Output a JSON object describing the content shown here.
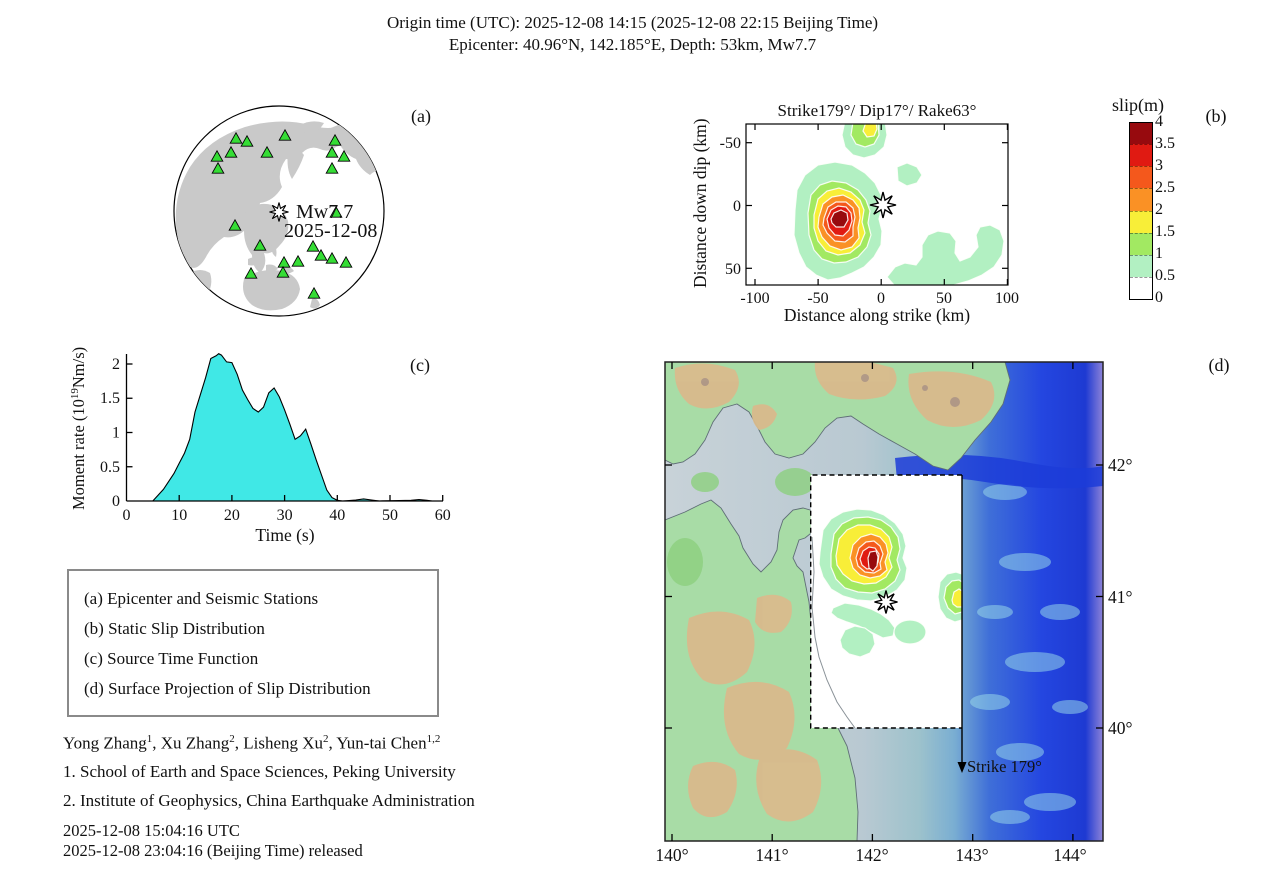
{
  "title": {
    "line1": "Origin time (UTC): 2025-12-08 14:15  (2025-12-08 22:15 Beijing Time)",
    "line2": "Epicenter: 40.96°N, 142.185°E,  Depth: 53km,  Mw7.7"
  },
  "panel_a": {
    "label": "(a)",
    "event_magnitude": "Mw7.7",
    "event_date": "2025-12-08",
    "stations_xy": [
      [
        76,
        44
      ],
      [
        87,
        47
      ],
      [
        125,
        41
      ],
      [
        71,
        58
      ],
      [
        57,
        62
      ],
      [
        107,
        58
      ],
      [
        175,
        46
      ],
      [
        172,
        58
      ],
      [
        184,
        62
      ],
      [
        58,
        74
      ],
      [
        172,
        74
      ],
      [
        176,
        118
      ],
      [
        75,
        131
      ],
      [
        100,
        151
      ],
      [
        153,
        152
      ],
      [
        161,
        161
      ],
      [
        172,
        164
      ],
      [
        186,
        168
      ],
      [
        124,
        168
      ],
      [
        138,
        167
      ],
      [
        91,
        179
      ],
      [
        123,
        178
      ],
      [
        154,
        199
      ]
    ]
  },
  "panel_b": {
    "label": "(b)",
    "title": "Strike179°/ Dip17°/ Rake63°",
    "xlabel": "Distance along strike (km)",
    "ylabel": "Distance down dip (km)",
    "x_ticks": [
      "-100",
      "-50",
      "0",
      "50",
      "100"
    ],
    "y_ticks": [
      "-50",
      "0",
      "50"
    ]
  },
  "colorbar": {
    "title": "slip(m)",
    "ticks": [
      "4",
      "3.5",
      "3",
      "2.5",
      "2",
      "1.5",
      "1",
      "0.5",
      "0"
    ],
    "colors_top_to_bottom": [
      "#970a0e",
      "#e01a12",
      "#f4581c",
      "#fa9125",
      "#f8ee38",
      "#a2e962",
      "#b2f0c2",
      "#ffffff"
    ]
  },
  "panel_c": {
    "label": "(c)",
    "ylabel_prefix": "Moment rate (10",
    "ylabel_sup": "19",
    "ylabel_suffix": "Nm/s)",
    "xlabel": "Time (s)",
    "x_ticks": [
      "0",
      "10",
      "20",
      "30",
      "40",
      "50",
      "60"
    ],
    "y_ticks": [
      "0",
      "0.5",
      "1",
      "1.5",
      "2"
    ],
    "fill_color": "#40e8e6"
  },
  "panel_d": {
    "label": "(d)",
    "lat_labels": [
      "42°",
      "41°",
      "40°"
    ],
    "lon_labels": [
      "140°",
      "141°",
      "142°",
      "143°",
      "144°"
    ],
    "strike_label": "Strike 179°",
    "palette": {
      "land_green": "#a8dca6",
      "mountain_tan": "#d9ba8c",
      "sea_near": "#c6d0d6",
      "sea_deep": "#2446e0",
      "sea_purple": "#8d83d8"
    }
  },
  "legend": {
    "items": [
      "(a) Epicenter and Seismic Stations",
      "(b) Static Slip Distribution",
      "(c) Source Time Function",
      "(d) Surface Projection of Slip Distribution"
    ]
  },
  "authors": [
    {
      "name": "Yong Zhang",
      "sup": "1",
      "sep": ", "
    },
    {
      "name": "Xu Zhang",
      "sup": "2",
      "sep": ", "
    },
    {
      "name": "Lisheng Xu",
      "sup": "2",
      "sep": ", "
    },
    {
      "name": "Yun-tai Chen",
      "sup": "1,2",
      "sep": ""
    }
  ],
  "affiliations": [
    "1. School of Earth and Space Sciences, Peking University",
    "2. Institute of Geophysics, China Earthquake Administration"
  ],
  "released": {
    "utc": "2025-12-08 15:04:16 UTC",
    "beijing": "2025-12-08 23:04:16 (Beijing Time) released"
  },
  "chart_data": [
    {
      "panel": "c",
      "type": "area",
      "title": "Source Time Function",
      "xlabel": "Time (s)",
      "ylabel": "Moment rate (10^19 Nm/s)",
      "xlim": [
        0,
        60
      ],
      "ylim": [
        0,
        2.2
      ],
      "grid": false,
      "x": [
        5,
        7,
        9,
        10,
        11,
        12,
        13,
        14,
        15,
        16,
        17,
        17.5,
        18,
        19,
        20,
        21,
        22,
        23,
        24,
        25,
        26,
        27,
        28,
        29,
        30,
        31,
        32,
        33,
        34,
        35,
        36,
        37,
        38,
        39,
        40,
        41,
        43.5,
        45,
        46.5,
        48,
        54,
        55.5,
        57,
        58
      ],
      "y": [
        0,
        0.17,
        0.4,
        0.55,
        0.7,
        0.9,
        1.3,
        1.55,
        1.8,
        2.08,
        2.12,
        2.15,
        2.13,
        2.03,
        2.02,
        1.85,
        1.62,
        1.48,
        1.35,
        1.3,
        1.37,
        1.58,
        1.65,
        1.52,
        1.33,
        1.12,
        0.9,
        0.95,
        1.05,
        0.83,
        0.6,
        0.38,
        0.16,
        0.05,
        0.01,
        0,
        0.015,
        0.03,
        0.015,
        0,
        0.01,
        0.02,
        0.01,
        0
      ]
    },
    {
      "panel": "b",
      "type": "heatmap",
      "subtype": "filled-contour slip distribution",
      "title": "Strike179°/ Dip17°/ Rake63°",
      "xlabel": "Distance along strike (km)",
      "ylabel": "Distance down dip (km)",
      "xlim": [
        -107,
        100
      ],
      "ylim_down_dip": [
        -65,
        63
      ],
      "contour_levels_m": [
        0.5,
        1,
        1.5,
        2,
        2.5,
        3,
        3.5
      ],
      "max_slip_m": 4,
      "main_asperity_center_km": [
        -38,
        12
      ],
      "secondary_patch_center_km": [
        -3,
        -62
      ],
      "epicenter_km": [
        0,
        0
      ]
    },
    {
      "panel": "a",
      "type": "scatter",
      "subtype": "azimuthal globe, stations and epicenter",
      "stations_count": 23,
      "epicenter_label": "Mw7.7 2025-12-08"
    },
    {
      "panel": "d",
      "type": "map",
      "subtype": "surface projection of slip on shaded-relief map",
      "lon_range_deg_e": [
        139.9,
        144.3
      ],
      "lat_range_deg_n": [
        39.1,
        42.8
      ],
      "fault_rect_lon_deg_e": [
        141.4,
        142.9
      ],
      "fault_rect_lat_deg_n": [
        40.0,
        41.9
      ],
      "epicenter_lon_lat": [
        142.185,
        40.96
      ],
      "strike_deg": 179
    }
  ]
}
